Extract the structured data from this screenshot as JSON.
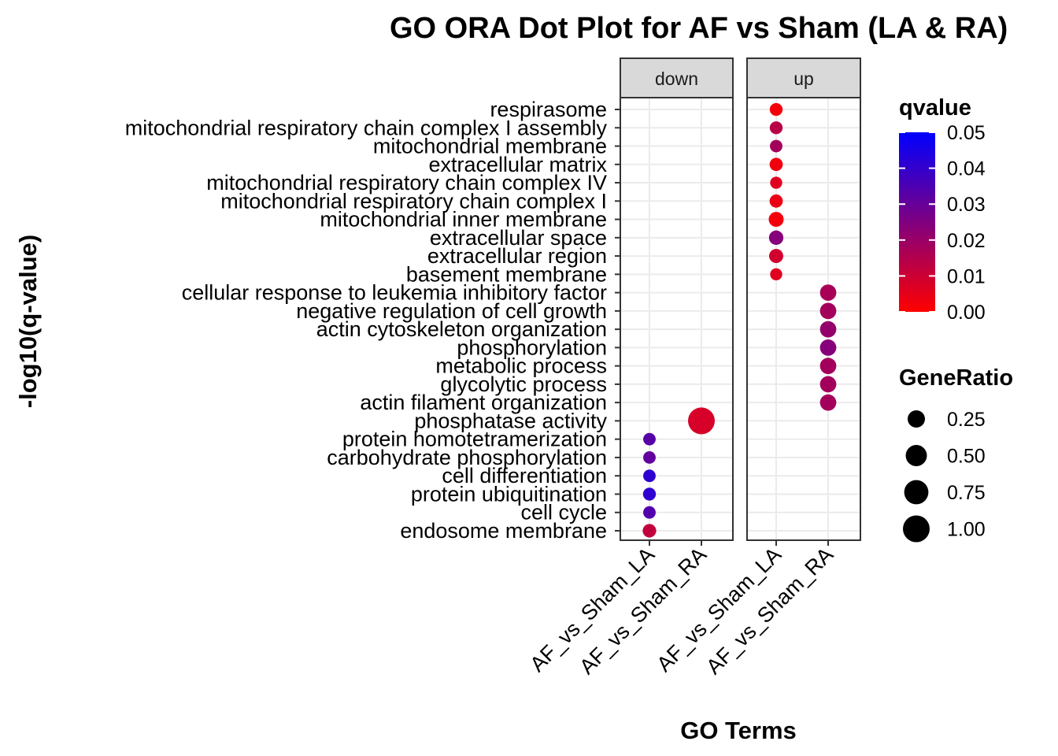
{
  "chart_data": {
    "type": "scatter",
    "title": "GO ORA Dot Plot for AF vs Sham (LA & RA)",
    "xlabel": "GO Terms",
    "ylabel": "-log10(q-value)",
    "facets": [
      "down",
      "up"
    ],
    "x_categories": [
      "AF_vs_Sham_LA",
      "AF_vs_Sham_RA"
    ],
    "x_tick_labels": [
      "AF_vs_Sham_LA",
      "AF_vs_Sham_RA",
      "AF_vs_Sham_LA",
      "AF_vs_Sham_RA"
    ],
    "y_categories": [
      "respirasome",
      "mitochondrial respiratory chain complex I assembly",
      "mitochondrial membrane",
      "extracellular matrix",
      "mitochondrial respiratory chain complex IV",
      "mitochondrial respiratory chain complex I",
      "mitochondrial inner membrane",
      "extracellular space",
      "extracellular region",
      "basement membrane",
      "cellular response to leukemia inhibitory factor",
      "negative regulation of cell growth",
      "actin cytoskeleton organization",
      "phosphorylation",
      "metabolic process",
      "glycolytic process",
      "actin filament organization",
      "phosphatase activity",
      "protein homotetramerization",
      "carbohydrate phosphorylation",
      "cell differentiation",
      "protein ubiquitination",
      "cell cycle",
      "endosome membrane"
    ],
    "points": [
      {
        "facet": "up",
        "x": "AF_vs_Sham_LA",
        "term": "respirasome",
        "gene_ratio": 0.07,
        "qvalue": 0.002
      },
      {
        "facet": "up",
        "x": "AF_vs_Sham_LA",
        "term": "mitochondrial respiratory chain complex I assembly",
        "gene_ratio": 0.07,
        "qvalue": 0.014
      },
      {
        "facet": "up",
        "x": "AF_vs_Sham_LA",
        "term": "mitochondrial membrane",
        "gene_ratio": 0.06,
        "qvalue": 0.018
      },
      {
        "facet": "up",
        "x": "AF_vs_Sham_LA",
        "term": "extracellular matrix",
        "gene_ratio": 0.08,
        "qvalue": 0.003
      },
      {
        "facet": "up",
        "x": "AF_vs_Sham_LA",
        "term": "mitochondrial respiratory chain complex IV",
        "gene_ratio": 0.05,
        "qvalue": 0.006
      },
      {
        "facet": "up",
        "x": "AF_vs_Sham_LA",
        "term": "mitochondrial respiratory chain complex I",
        "gene_ratio": 0.08,
        "qvalue": 0.004
      },
      {
        "facet": "up",
        "x": "AF_vs_Sham_LA",
        "term": "mitochondrial inner membrane",
        "gene_ratio": 0.14,
        "qvalue": 0.002
      },
      {
        "facet": "up",
        "x": "AF_vs_Sham_LA",
        "term": "extracellular space",
        "gene_ratio": 0.12,
        "qvalue": 0.024
      },
      {
        "facet": "up",
        "x": "AF_vs_Sham_LA",
        "term": "extracellular region",
        "gene_ratio": 0.11,
        "qvalue": 0.009
      },
      {
        "facet": "up",
        "x": "AF_vs_Sham_LA",
        "term": "basement membrane",
        "gene_ratio": 0.05,
        "qvalue": 0.006
      },
      {
        "facet": "up",
        "x": "AF_vs_Sham_RA",
        "term": "cellular response to leukemia inhibitory factor",
        "gene_ratio": 0.2,
        "qvalue": 0.017
      },
      {
        "facet": "up",
        "x": "AF_vs_Sham_RA",
        "term": "negative regulation of cell growth",
        "gene_ratio": 0.2,
        "qvalue": 0.018
      },
      {
        "facet": "up",
        "x": "AF_vs_Sham_RA",
        "term": "actin cytoskeleton organization",
        "gene_ratio": 0.2,
        "qvalue": 0.021
      },
      {
        "facet": "up",
        "x": "AF_vs_Sham_RA",
        "term": "phosphorylation",
        "gene_ratio": 0.2,
        "qvalue": 0.024
      },
      {
        "facet": "up",
        "x": "AF_vs_Sham_RA",
        "term": "metabolic process",
        "gene_ratio": 0.2,
        "qvalue": 0.018
      },
      {
        "facet": "up",
        "x": "AF_vs_Sham_RA",
        "term": "glycolytic process",
        "gene_ratio": 0.2,
        "qvalue": 0.018
      },
      {
        "facet": "up",
        "x": "AF_vs_Sham_RA",
        "term": "actin filament organization",
        "gene_ratio": 0.2,
        "qvalue": 0.018
      },
      {
        "facet": "down",
        "x": "AF_vs_Sham_RA",
        "term": "phosphatase activity",
        "gene_ratio": 1.0,
        "qvalue": 0.008
      },
      {
        "facet": "down",
        "x": "AF_vs_Sham_LA",
        "term": "protein homotetramerization",
        "gene_ratio": 0.06,
        "qvalue": 0.033
      },
      {
        "facet": "down",
        "x": "AF_vs_Sham_LA",
        "term": "carbohydrate phosphorylation",
        "gene_ratio": 0.06,
        "qvalue": 0.031
      },
      {
        "facet": "down",
        "x": "AF_vs_Sham_LA",
        "term": "cell differentiation",
        "gene_ratio": 0.06,
        "qvalue": 0.041
      },
      {
        "facet": "down",
        "x": "AF_vs_Sham_LA",
        "term": "protein ubiquitination",
        "gene_ratio": 0.07,
        "qvalue": 0.041
      },
      {
        "facet": "down",
        "x": "AF_vs_Sham_LA",
        "term": "cell cycle",
        "gene_ratio": 0.06,
        "qvalue": 0.034
      },
      {
        "facet": "down",
        "x": "AF_vs_Sham_LA",
        "term": "endosome membrane",
        "gene_ratio": 0.09,
        "qvalue": 0.012
      }
    ],
    "color_legend": {
      "title": "qvalue",
      "low_color": "#ff0000",
      "high_color": "#0000ff",
      "range": [
        0,
        0.05
      ],
      "breaks": [
        "0.05",
        "0.04",
        "0.03",
        "0.02",
        "0.01",
        "0.00"
      ]
    },
    "size_legend": {
      "title": "GeneRatio",
      "breaks": [
        "0.25",
        "0.50",
        "0.75",
        "1.00"
      ]
    },
    "grid": true,
    "legend_position": "right"
  }
}
